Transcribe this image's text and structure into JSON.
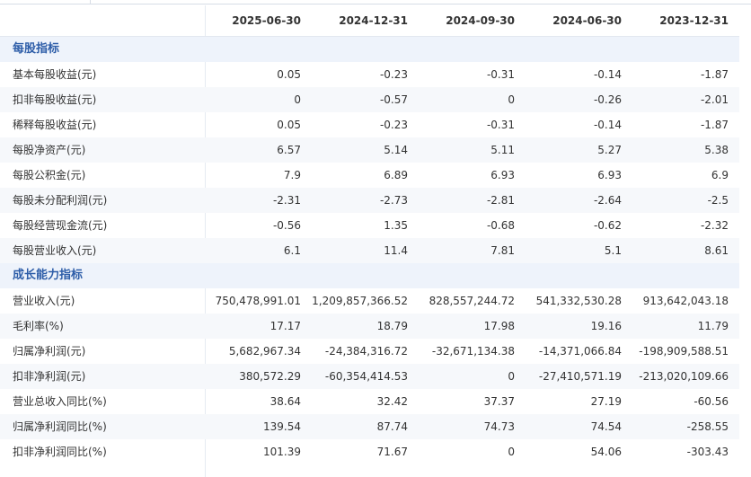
{
  "table": {
    "columns": [
      "2025-06-30",
      "2024-12-31",
      "2024-09-30",
      "2024-06-30",
      "2023-12-31"
    ],
    "sections": [
      {
        "title": "每股指标",
        "rows": [
          {
            "label": "基本每股收益(元)",
            "values": [
              "0.05",
              "-0.23",
              "-0.31",
              "-0.14",
              "-1.87"
            ]
          },
          {
            "label": "扣非每股收益(元)",
            "values": [
              "0",
              "-0.57",
              "0",
              "-0.26",
              "-2.01"
            ]
          },
          {
            "label": "稀释每股收益(元)",
            "values": [
              "0.05",
              "-0.23",
              "-0.31",
              "-0.14",
              "-1.87"
            ]
          },
          {
            "label": "每股净资产(元)",
            "values": [
              "6.57",
              "5.14",
              "5.11",
              "5.27",
              "5.38"
            ]
          },
          {
            "label": "每股公积金(元)",
            "values": [
              "7.9",
              "6.89",
              "6.93",
              "6.93",
              "6.9"
            ]
          },
          {
            "label": "每股未分配利润(元)",
            "values": [
              "-2.31",
              "-2.73",
              "-2.81",
              "-2.64",
              "-2.5"
            ]
          },
          {
            "label": "每股经营现金流(元)",
            "values": [
              "-0.56",
              "1.35",
              "-0.68",
              "-0.62",
              "-2.32"
            ]
          },
          {
            "label": "每股营业收入(元)",
            "values": [
              "6.1",
              "11.4",
              "7.81",
              "5.1",
              "8.61"
            ]
          }
        ]
      },
      {
        "title": "成长能力指标",
        "rows": [
          {
            "label": "营业收入(元)",
            "values": [
              "750,478,991.01",
              "1,209,857,366.52",
              "828,557,244.72",
              "541,332,530.28",
              "913,642,043.18"
            ]
          },
          {
            "label": "毛利率(%)",
            "values": [
              "17.17",
              "18.79",
              "17.98",
              "19.16",
              "11.79"
            ]
          },
          {
            "label": "归属净利润(元)",
            "values": [
              "5,682,967.34",
              "-24,384,316.72",
              "-32,671,134.38",
              "-14,371,066.84",
              "-198,909,588.51"
            ]
          },
          {
            "label": "扣非净利润(元)",
            "values": [
              "380,572.29",
              "-60,354,414.53",
              "0",
              "-27,410,571.19",
              "-213,020,109.66"
            ]
          },
          {
            "label": "营业总收入同比(%)",
            "values": [
              "38.64",
              "32.42",
              "37.37",
              "27.19",
              "-60.56"
            ]
          },
          {
            "label": "归属净利润同比(%)",
            "values": [
              "139.54",
              "87.74",
              "74.73",
              "74.54",
              "-258.55"
            ]
          },
          {
            "label": "扣非净利润同比(%)",
            "values": [
              "101.39",
              "71.67",
              "0",
              "54.06",
              "-303.43"
            ]
          }
        ]
      }
    ]
  }
}
